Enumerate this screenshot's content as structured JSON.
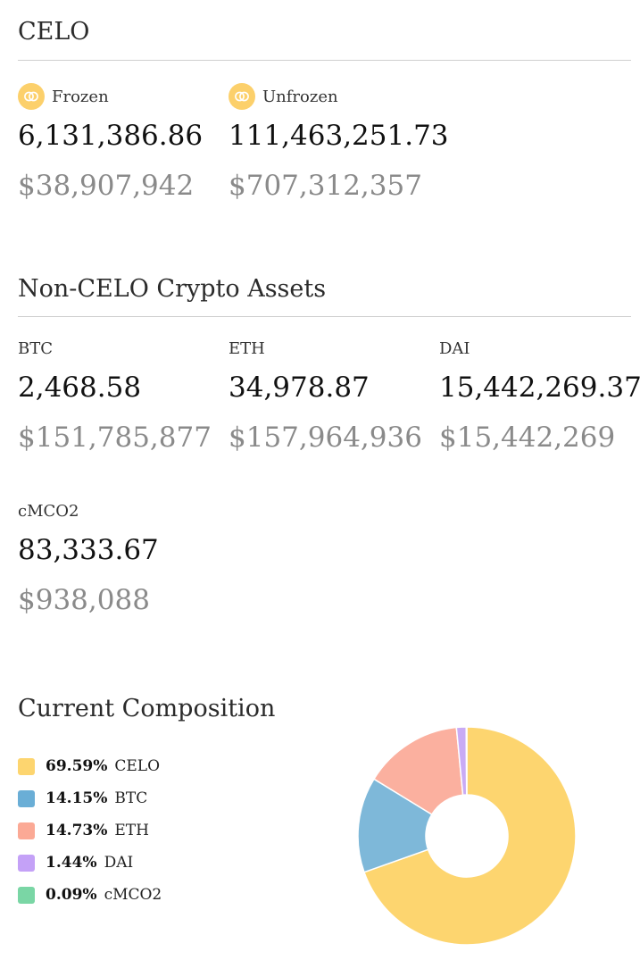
{
  "celo": {
    "title": "CELO",
    "frozen": {
      "label": "Frozen",
      "amount": "6,131,386.86",
      "usd": "$38,907,942",
      "icon": "celo-coin-icon"
    },
    "unfrozen": {
      "label": "Unfrozen",
      "amount": "111,463,251.73",
      "usd": "$707,312,357",
      "icon": "celo-coin-icon"
    }
  },
  "non_celo": {
    "title": "Non-CELO Crypto Assets",
    "assets": [
      {
        "label": "BTC",
        "amount": "2,468.58",
        "usd": "$151,785,877"
      },
      {
        "label": "ETH",
        "amount": "34,978.87",
        "usd": "$157,964,936"
      },
      {
        "label": "DAI",
        "amount": "15,442,269.37",
        "usd": "$15,442,269"
      },
      {
        "label": "cMCO2",
        "amount": "83,333.67",
        "usd": "$938,088"
      }
    ]
  },
  "composition": {
    "title": "Current Composition",
    "legend": [
      {
        "pct": "69.59%",
        "name": "CELO",
        "color": "#fdd56f"
      },
      {
        "pct": "14.15%",
        "name": "BTC",
        "color": "#6aaed6"
      },
      {
        "pct": "14.73%",
        "name": "ETH",
        "color": "#fba995"
      },
      {
        "pct": "1.44%",
        "name": "DAI",
        "color": "#c4a1f7"
      },
      {
        "pct": "0.09%",
        "name": "cMCO2",
        "color": "#7ad6a5"
      }
    ]
  },
  "chart_data": {
    "type": "pie",
    "categories": [
      "CELO",
      "BTC",
      "ETH",
      "DAI",
      "cMCO2"
    ],
    "values": [
      69.59,
      14.15,
      14.73,
      1.44,
      0.09
    ],
    "colors": [
      "#fdd56f",
      "#7eb8d9",
      "#fbb09f",
      "#c9abf5",
      "#7ad6a5"
    ],
    "donut": true,
    "legend": "left"
  }
}
